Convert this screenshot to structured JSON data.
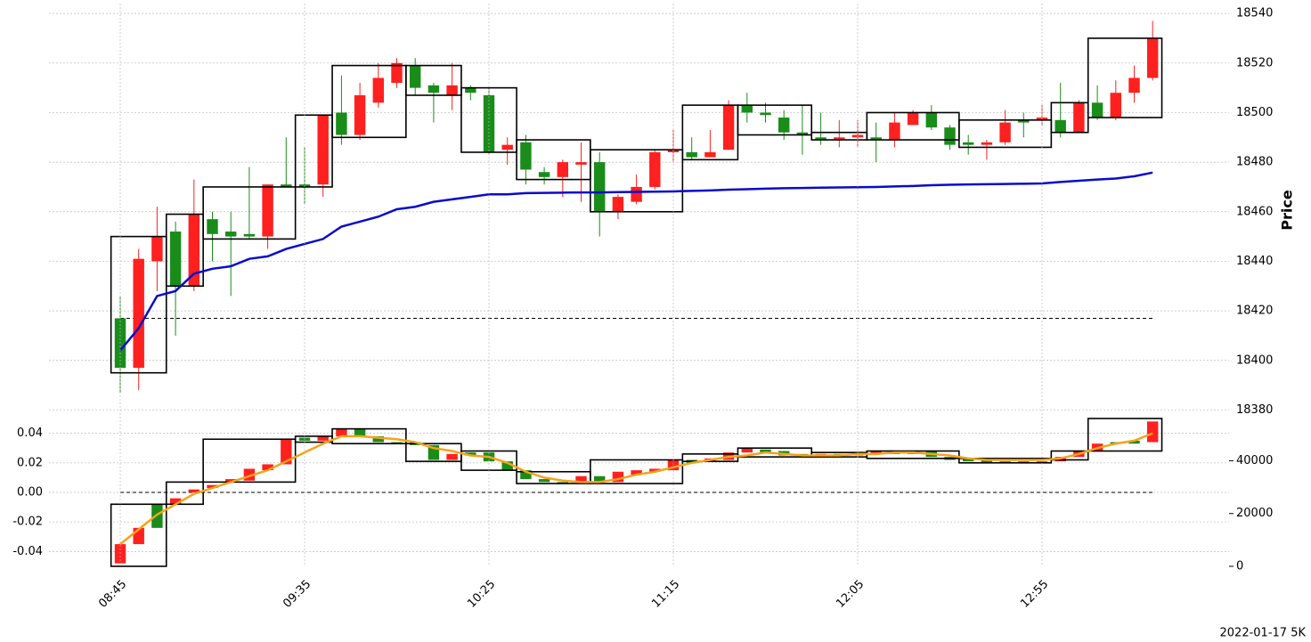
{
  "chart_data": [
    {
      "type": "candlestick",
      "ylabel": "Price",
      "grid": true,
      "up_color": "#ff2020",
      "down_color": "#1a8c1a",
      "ylim": [
        18378,
        18544
      ],
      "yticks": [
        18380,
        18400,
        18420,
        18440,
        18460,
        18480,
        18500,
        18520,
        18540
      ],
      "open": [
        18417,
        18397,
        18440,
        18452,
        18430,
        18457,
        18452,
        18451,
        18450,
        18471,
        18471,
        18471,
        18500,
        18491,
        18504,
        18512,
        18519,
        18511,
        18507,
        18510,
        18507,
        18485,
        18488,
        18476,
        18474,
        18479,
        18480,
        18460,
        18464,
        18470,
        18484,
        18484,
        18482,
        18485,
        18503,
        18500,
        18498,
        18492,
        18490,
        18489,
        18490,
        18490,
        18489,
        18495,
        18500,
        18494,
        18488,
        18487,
        18488,
        18497,
        18497,
        18497,
        18492,
        18504,
        18498,
        18508,
        18514
      ],
      "high": [
        18426,
        18445,
        18462,
        18456,
        18473,
        18460,
        18460,
        18478,
        18471,
        18490,
        18486,
        18499,
        18515,
        18512,
        18520,
        18522,
        18522,
        18512,
        18520,
        18511,
        18510,
        18490,
        18491,
        18478,
        18481,
        18488,
        18484,
        18467,
        18475,
        18485,
        18493,
        18490,
        18493,
        18505,
        18508,
        18504,
        18501,
        18503,
        18500,
        18497,
        18497,
        18496,
        18500,
        18501,
        18503,
        18495,
        18491,
        18489,
        18501,
        18500,
        18503,
        18512,
        18505,
        18511,
        18513,
        18519,
        18537
      ],
      "low": [
        18387,
        18388,
        18428,
        18410,
        18428,
        18440,
        18426,
        18449,
        18445,
        18470,
        18463,
        18466,
        18487,
        18489,
        18502,
        18510,
        18507,
        18496,
        18501,
        18505,
        18483,
        18479,
        18471,
        18471,
        18466,
        18464,
        18450,
        18457,
        18463,
        18469,
        18480,
        18481,
        18482,
        18485,
        18496,
        18496,
        18489,
        18483,
        18487,
        18486,
        18486,
        18480,
        18486,
        18495,
        18493,
        18485,
        18483,
        18481,
        18487,
        18490,
        18495,
        18490,
        18492,
        18497,
        18497,
        18504,
        18513
      ],
      "close": [
        18397,
        18441,
        18450,
        18430,
        18459,
        18451,
        18450,
        18450,
        18471,
        18470,
        18470,
        18499,
        18491,
        18507,
        18514,
        18520,
        18510,
        18508,
        18511,
        18508,
        18484,
        18487,
        18477,
        18474,
        18480,
        18480,
        18460,
        18466,
        18470,
        18484,
        18485,
        18482,
        18484,
        18503,
        18500,
        18499,
        18492,
        18491,
        18489,
        18490,
        18491,
        18489,
        18496,
        18500,
        18494,
        18487,
        18487,
        18488,
        18496,
        18496,
        18498,
        18492,
        18504,
        18498,
        18508,
        18514,
        18530
      ],
      "line": {
        "color": "#0a0acc",
        "values": [
          18404,
          18413,
          18426,
          18428,
          18435,
          18437,
          18438,
          18441,
          18442,
          18445,
          18447,
          18449,
          18454,
          18456,
          18458,
          18461,
          18462,
          18464,
          18465,
          18466,
          18467,
          18467,
          18467.5,
          18467.6,
          18467.7,
          18467.8,
          18467.8,
          18467.9,
          18468,
          18468.1,
          18468.2,
          18468.4,
          18468.6,
          18468.9,
          18469.1,
          18469.3,
          18469.5,
          18469.6,
          18469.7,
          18469.8,
          18469.9,
          18470,
          18470.2,
          18470.4,
          18470.7,
          18470.9,
          18471,
          18471.1,
          18471.2,
          18471.3,
          18471.4,
          18472,
          18472.5,
          18473,
          18473.4,
          18474.3,
          18475.8
        ]
      },
      "hline": {
        "value": 18417,
        "color": "#000000"
      },
      "boxes": [
        {
          "x": [
            0,
            2
          ],
          "high": 18450,
          "low": 18395
        },
        {
          "x": [
            3,
            4
          ],
          "high": 18459,
          "low": 18430
        },
        {
          "x": [
            5,
            9
          ],
          "high": 18470,
          "low": 18449
        },
        {
          "x": [
            10,
            11
          ],
          "high": 18499,
          "low": 18470
        },
        {
          "x": [
            12,
            15
          ],
          "high": 18519,
          "low": 18490
        },
        {
          "x": [
            16,
            18
          ],
          "high": 18519,
          "low": 18507
        },
        {
          "x": [
            19,
            21
          ],
          "high": 18510,
          "low": 18484
        },
        {
          "x": [
            22,
            25
          ],
          "high": 18489,
          "low": 18473
        },
        {
          "x": [
            26,
            30
          ],
          "high": 18485,
          "low": 18460
        },
        {
          "x": [
            31,
            33
          ],
          "high": 18503,
          "low": 18481
        },
        {
          "x": [
            34,
            37
          ],
          "high": 18503,
          "low": 18491
        },
        {
          "x": [
            38,
            40
          ],
          "high": 18492,
          "low": 18489
        },
        {
          "x": [
            41,
            45
          ],
          "high": 18500,
          "low": 18489
        },
        {
          "x": [
            46,
            50
          ],
          "high": 18497,
          "low": 18486
        },
        {
          "x": [
            51,
            52
          ],
          "high": 18504,
          "low": 18492
        },
        {
          "x": [
            53,
            56
          ],
          "high": 18530,
          "low": 18498
        }
      ]
    },
    {
      "type": "candlestick",
      "grid": true,
      "up_color": "#ff2020",
      "down_color": "#1a8c1a",
      "categories": [
        "08:45",
        null,
        null,
        null,
        null,
        null,
        null,
        null,
        null,
        null,
        "09:35",
        null,
        null,
        null,
        null,
        null,
        null,
        null,
        null,
        null,
        "10:25",
        null,
        null,
        null,
        null,
        null,
        null,
        null,
        null,
        null,
        "11:15",
        null,
        null,
        null,
        null,
        null,
        null,
        null,
        null,
        null,
        "12:05",
        null,
        null,
        null,
        null,
        null,
        null,
        null,
        null,
        null,
        "12:55",
        null,
        null,
        null,
        null,
        null,
        null
      ],
      "ylim": [
        -0.05,
        0.05
      ],
      "yticks": [
        -0.04,
        -0.02,
        {
          "value": 0,
          "label": "0.00"
        },
        0.02,
        0.04
      ],
      "y2lim": [
        0,
        56000
      ],
      "y2ticks": [
        0,
        20000,
        40000
      ],
      "open": [
        -0.048,
        -0.035,
        -0.008,
        -0.008,
        0.0,
        0.003,
        0.007,
        0.008,
        0.015,
        0.019,
        0.037,
        0.035,
        0.038,
        0.043,
        0.038,
        0.034,
        0.034,
        0.032,
        0.022,
        0.027,
        0.027,
        0.021,
        0.015,
        0.009,
        0.007,
        0.007,
        0.011,
        0.007,
        0.012,
        0.014,
        0.015,
        0.022,
        0.021,
        0.022,
        0.027,
        0.029,
        0.028,
        0.026,
        0.025,
        0.026,
        0.025,
        0.026,
        0.028,
        0.026,
        0.028,
        0.024,
        0.023,
        0.022,
        0.021,
        0.02,
        0.02,
        0.021,
        0.024,
        0.028,
        0.034,
        0.035,
        0.034
      ],
      "close": [
        -0.035,
        -0.024,
        -0.024,
        -0.004,
        0.002,
        0.005,
        0.009,
        0.016,
        0.019,
        0.036,
        0.035,
        0.038,
        0.043,
        0.038,
        0.034,
        0.033,
        0.032,
        0.022,
        0.026,
        0.025,
        0.021,
        0.015,
        0.009,
        0.007,
        0.006,
        0.011,
        0.007,
        0.014,
        0.015,
        0.016,
        0.022,
        0.02,
        0.023,
        0.027,
        0.03,
        0.027,
        0.025,
        0.025,
        0.026,
        0.025,
        0.026,
        0.028,
        0.026,
        0.028,
        0.024,
        0.022,
        0.021,
        0.02,
        0.02,
        0.021,
        0.021,
        0.024,
        0.028,
        0.033,
        0.033,
        0.033,
        0.048
      ],
      "line": {
        "color": "#f5a31a",
        "values": [
          -0.035,
          -0.025,
          -0.015,
          -0.008,
          -0.001,
          0.003,
          0.007,
          0.011,
          0.015,
          0.021,
          0.027,
          0.033,
          0.038,
          0.038,
          0.037,
          0.036,
          0.034,
          0.03,
          0.028,
          0.025,
          0.024,
          0.02,
          0.014,
          0.01,
          0.008,
          0.007,
          0.007,
          0.009,
          0.012,
          0.014,
          0.017,
          0.02,
          0.022,
          0.024,
          0.025,
          0.027,
          0.026,
          0.025,
          0.025,
          0.025,
          0.026,
          0.026,
          0.027,
          0.027,
          0.026,
          0.025,
          0.023,
          0.022,
          0.022,
          0.022,
          0.022,
          0.023,
          0.026,
          0.03,
          0.033,
          0.035,
          0.04
        ]
      },
      "hline": {
        "value": 0,
        "color": "#000000"
      },
      "boxes": [
        {
          "x": [
            0,
            2
          ],
          "high": -0.008,
          "low": -0.05
        },
        {
          "x": [
            3,
            4
          ],
          "high": 0.007,
          "low": -0.008
        },
        {
          "x": [
            5,
            9
          ],
          "high": 0.036,
          "low": 0.007
        },
        {
          "x": [
            10,
            11
          ],
          "high": 0.038,
          "low": 0.034
        },
        {
          "x": [
            12,
            15
          ],
          "high": 0.043,
          "low": 0.033
        },
        {
          "x": [
            16,
            18
          ],
          "high": 0.033,
          "low": 0.021
        },
        {
          "x": [
            19,
            21
          ],
          "high": 0.028,
          "low": 0.015
        },
        {
          "x": [
            22,
            25
          ],
          "high": 0.014,
          "low": 0.006
        },
        {
          "x": [
            26,
            30
          ],
          "high": 0.022,
          "low": 0.006
        },
        {
          "x": [
            31,
            33
          ],
          "high": 0.026,
          "low": 0.021
        },
        {
          "x": [
            34,
            37
          ],
          "high": 0.03,
          "low": 0.024
        },
        {
          "x": [
            38,
            40
          ],
          "high": 0.027,
          "low": 0.024
        },
        {
          "x": [
            41,
            45
          ],
          "high": 0.028,
          "low": 0.023
        },
        {
          "x": [
            46,
            50
          ],
          "high": 0.023,
          "low": 0.02
        },
        {
          "x": [
            51,
            52
          ],
          "high": 0.028,
          "low": 0.022
        },
        {
          "x": [
            53,
            56
          ],
          "high": 0.05,
          "low": 0.028
        }
      ]
    }
  ],
  "footnote": "2022-01-17 5K"
}
